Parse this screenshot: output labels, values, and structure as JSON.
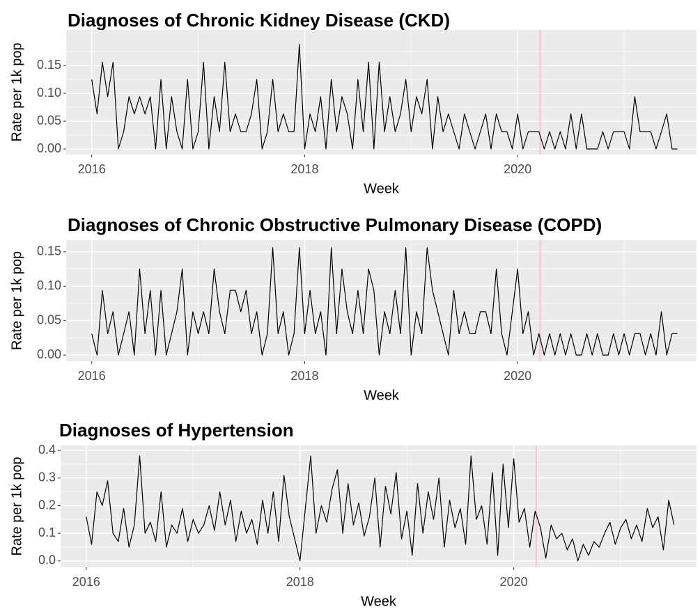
{
  "chart_data": [
    {
      "type": "line",
      "title": "Diagnoses of Chronic Kidney Disease (CKD)",
      "xlabel": "Week",
      "ylabel": "Rate per 1k pop",
      "x": [
        2016,
        2016.05,
        2016.1,
        2016.15,
        2016.2,
        2016.25,
        2016.3,
        2016.35,
        2016.4,
        2016.45,
        2016.5,
        2016.55,
        2016.6,
        2016.65,
        2016.7,
        2016.75,
        2016.8,
        2016.85,
        2016.9,
        2016.95,
        2017,
        2017.05,
        2017.1,
        2017.15,
        2017.2,
        2017.25,
        2017.3,
        2017.35,
        2017.4,
        2017.45,
        2017.5,
        2017.55,
        2017.6,
        2017.65,
        2017.7,
        2017.75,
        2017.8,
        2017.85,
        2017.9,
        2017.95,
        2018,
        2018.05,
        2018.1,
        2018.15,
        2018.2,
        2018.25,
        2018.3,
        2018.35,
        2018.4,
        2018.45,
        2018.5,
        2018.55,
        2018.6,
        2018.65,
        2018.7,
        2018.75,
        2018.8,
        2018.85,
        2018.9,
        2018.95,
        2019,
        2019.05,
        2019.1,
        2019.15,
        2019.2,
        2019.25,
        2019.3,
        2019.35,
        2019.4,
        2019.45,
        2019.5,
        2019.55,
        2019.6,
        2019.65,
        2019.7,
        2019.75,
        2019.8,
        2019.85,
        2019.9,
        2019.95,
        2020,
        2020.05,
        2020.1,
        2020.15,
        2020.2,
        2020.25,
        2020.3,
        2020.35,
        2020.4,
        2020.45,
        2020.5,
        2020.55,
        2020.6,
        2020.65,
        2020.7,
        2020.75,
        2020.8,
        2020.85,
        2020.9,
        2020.95,
        2021,
        2021.05,
        2021.1,
        2021.15,
        2021.2,
        2021.25,
        2021.3,
        2021.35,
        2021.4,
        2021.45,
        2021.5
      ],
      "series": [
        {
          "color": "#000000",
          "values": [
            0.125,
            0.063,
            0.156,
            0.094,
            0.156,
            0,
            0.031,
            0.094,
            0.063,
            0.094,
            0.063,
            0.094,
            0,
            0.125,
            0,
            0.094,
            0.031,
            0,
            0.125,
            0,
            0.031,
            0.156,
            0,
            0.094,
            0.031,
            0.156,
            0.031,
            0.063,
            0.031,
            0.031,
            0.063,
            0.125,
            0,
            0.031,
            0.125,
            0.031,
            0.063,
            0.031,
            0.031,
            0.188,
            0,
            0.063,
            0.031,
            0.094,
            0,
            0.125,
            0.031,
            0.094,
            0.063,
            0,
            0.125,
            0.031,
            0.156,
            0,
            0.156,
            0.031,
            0.094,
            0.031,
            0.063,
            0.125,
            0.031,
            0.094,
            0.063,
            0.125,
            0,
            0.094,
            0.031,
            0.063,
            0.031,
            0,
            0.063,
            0.031,
            0,
            0.031,
            0.063,
            0,
            0.063,
            0.031,
            0.031,
            0,
            0.063,
            0,
            0.031,
            0.031,
            0.031,
            0,
            0.031,
            0,
            0.031,
            0,
            0.063,
            0,
            0.063,
            0,
            0,
            0,
            0.031,
            0,
            0.031,
            0.031,
            0.031,
            0,
            0.094,
            0.031,
            0.031,
            0.031,
            0,
            0.031,
            0.063,
            0,
            0
          ]
        }
      ],
      "xlim": [
        2015.76,
        2021.68
      ],
      "xticks": [
        2016,
        2018,
        2020
      ],
      "ylim": [
        -0.01,
        0.214
      ],
      "yticks": [
        {
          "value": 0,
          "label": "0.00"
        },
        0.05,
        {
          "value": 0.1,
          "label": "0.10"
        },
        0.15
      ],
      "reference_line": {
        "x": 2020.21,
        "color": "#ffc0cb"
      },
      "grid": true
    },
    {
      "type": "line",
      "title": "Diagnoses of Chronic Obstructive Pulmonary Disease (COPD)",
      "xlabel": "Week",
      "ylabel": "Rate per 1k pop",
      "x": [
        2016,
        2016.05,
        2016.1,
        2016.15,
        2016.2,
        2016.25,
        2016.3,
        2016.35,
        2016.4,
        2016.45,
        2016.5,
        2016.55,
        2016.6,
        2016.65,
        2016.7,
        2016.75,
        2016.8,
        2016.85,
        2016.9,
        2016.95,
        2017,
        2017.05,
        2017.1,
        2017.15,
        2017.2,
        2017.25,
        2017.3,
        2017.35,
        2017.4,
        2017.45,
        2017.5,
        2017.55,
        2017.6,
        2017.65,
        2017.7,
        2017.75,
        2017.8,
        2017.85,
        2017.9,
        2017.95,
        2018,
        2018.05,
        2018.1,
        2018.15,
        2018.2,
        2018.25,
        2018.3,
        2018.35,
        2018.4,
        2018.45,
        2018.5,
        2018.55,
        2018.6,
        2018.65,
        2018.7,
        2018.75,
        2018.8,
        2018.85,
        2018.9,
        2018.95,
        2019,
        2019.05,
        2019.1,
        2019.15,
        2019.2,
        2019.25,
        2019.3,
        2019.35,
        2019.4,
        2019.45,
        2019.5,
        2019.55,
        2019.6,
        2019.65,
        2019.7,
        2019.75,
        2019.8,
        2019.85,
        2019.9,
        2019.95,
        2020,
        2020.05,
        2020.1,
        2020.15,
        2020.2,
        2020.25,
        2020.3,
        2020.35,
        2020.4,
        2020.45,
        2020.5,
        2020.55,
        2020.6,
        2020.65,
        2020.7,
        2020.75,
        2020.8,
        2020.85,
        2020.9,
        2020.95,
        2021,
        2021.05,
        2021.1,
        2021.15,
        2021.2,
        2021.25,
        2021.3,
        2021.35,
        2021.4,
        2021.45,
        2021.5
      ],
      "series": [
        {
          "color": "#000000",
          "values": [
            0.031,
            0,
            0.094,
            0.031,
            0.063,
            0,
            0.031,
            0.063,
            0,
            0.125,
            0.031,
            0.094,
            0,
            0.094,
            0,
            0.031,
            0.063,
            0.125,
            0,
            0.063,
            0.031,
            0.063,
            0.031,
            0.125,
            0.063,
            0.031,
            0.094,
            0.094,
            0.063,
            0.094,
            0.031,
            0.063,
            0,
            0.031,
            0.156,
            0.031,
            0.063,
            0,
            0.031,
            0.156,
            0.031,
            0.094,
            0.031,
            0.063,
            0,
            0.156,
            0.031,
            0.125,
            0.063,
            0.031,
            0.094,
            0.031,
            0.125,
            0.094,
            0,
            0.063,
            0.031,
            0.094,
            0.031,
            0.156,
            0,
            0.063,
            0.031,
            0.156,
            0.094,
            0.063,
            0.031,
            0,
            0.094,
            0.031,
            0.063,
            0.031,
            0.031,
            0.063,
            0.063,
            0.031,
            0.125,
            0.031,
            0,
            0.063,
            0.125,
            0.031,
            0.063,
            0,
            0.031,
            0,
            0.031,
            0,
            0.031,
            0,
            0.031,
            0,
            0,
            0.031,
            0,
            0.031,
            0,
            0,
            0.031,
            0,
            0.031,
            0,
            0.031,
            0.031,
            0,
            0.031,
            0,
            0.063,
            0,
            0.031,
            0.031
          ]
        }
      ],
      "xlim": [
        2015.76,
        2021.68
      ],
      "xticks": [
        2016,
        2018,
        2020
      ],
      "ylim": [
        -0.009,
        0.167
      ],
      "yticks": [
        {
          "value": 0,
          "label": "0.00"
        },
        0.05,
        {
          "value": 0.1,
          "label": "0.10"
        },
        0.15
      ],
      "reference_line": {
        "x": 2020.21,
        "color": "#ffc0cb"
      },
      "grid": true
    },
    {
      "type": "line",
      "title": "Diagnoses of Hypertension",
      "xlabel": "Week",
      "ylabel": "Rate per 1k pop",
      "x": [
        2016,
        2016.05,
        2016.1,
        2016.15,
        2016.2,
        2016.25,
        2016.3,
        2016.35,
        2016.4,
        2016.45,
        2016.5,
        2016.55,
        2016.6,
        2016.65,
        2016.7,
        2016.75,
        2016.8,
        2016.85,
        2016.9,
        2016.95,
        2017,
        2017.05,
        2017.1,
        2017.15,
        2017.2,
        2017.25,
        2017.3,
        2017.35,
        2017.4,
        2017.45,
        2017.5,
        2017.55,
        2017.6,
        2017.65,
        2017.7,
        2017.75,
        2017.8,
        2017.85,
        2017.9,
        2017.95,
        2018,
        2018.05,
        2018.1,
        2018.15,
        2018.2,
        2018.25,
        2018.3,
        2018.35,
        2018.4,
        2018.45,
        2018.5,
        2018.55,
        2018.6,
        2018.65,
        2018.7,
        2018.75,
        2018.8,
        2018.85,
        2018.9,
        2018.95,
        2019,
        2019.05,
        2019.1,
        2019.15,
        2019.2,
        2019.25,
        2019.3,
        2019.35,
        2019.4,
        2019.45,
        2019.5,
        2019.55,
        2019.6,
        2019.65,
        2019.7,
        2019.75,
        2019.8,
        2019.85,
        2019.9,
        2019.95,
        2020,
        2020.05,
        2020.1,
        2020.15,
        2020.2,
        2020.25,
        2020.3,
        2020.35,
        2020.4,
        2020.45,
        2020.5,
        2020.55,
        2020.6,
        2020.65,
        2020.7,
        2020.75,
        2020.8,
        2020.85,
        2020.9,
        2020.95,
        2021,
        2021.05,
        2021.1,
        2021.15,
        2021.2,
        2021.25,
        2021.3,
        2021.35,
        2021.4,
        2021.45,
        2021.5
      ],
      "series": [
        {
          "color": "#000000",
          "values": [
            0.16,
            0.06,
            0.25,
            0.2,
            0.29,
            0.1,
            0.07,
            0.19,
            0.05,
            0.13,
            0.38,
            0.1,
            0.14,
            0.07,
            0.25,
            0.05,
            0.13,
            0.1,
            0.19,
            0.07,
            0.15,
            0.1,
            0.13,
            0.2,
            0.11,
            0.25,
            0.13,
            0.22,
            0.07,
            0.18,
            0.1,
            0.15,
            0.06,
            0.22,
            0.1,
            0.25,
            0.07,
            0.31,
            0.16,
            0.08,
            0,
            0.19,
            0.38,
            0.1,
            0.2,
            0.14,
            0.26,
            0.33,
            0.1,
            0.28,
            0.13,
            0.21,
            0.09,
            0.16,
            0.3,
            0.05,
            0.27,
            0.17,
            0.32,
            0.08,
            0.18,
            0.02,
            0.28,
            0.1,
            0.25,
            0.15,
            0.3,
            0.05,
            0.22,
            0.12,
            0.19,
            0.06,
            0.38,
            0.15,
            0.2,
            0.06,
            0.32,
            0.02,
            0.35,
            0.12,
            0.37,
            0.14,
            0.19,
            0.05,
            0.18,
            0.12,
            0.01,
            0.13,
            0.08,
            0.1,
            0.04,
            0.08,
            0,
            0.06,
            0.02,
            0.07,
            0.05,
            0.1,
            0.14,
            0.06,
            0.12,
            0.15,
            0.08,
            0.13,
            0.07,
            0.19,
            0.12,
            0.16,
            0.04,
            0.22,
            0.13
          ]
        }
      ],
      "xlim": [
        2015.76,
        2021.71
      ],
      "xticks": [
        2016,
        2018,
        2020
      ],
      "ylim": [
        -0.023,
        0.418
      ],
      "yticks": [
        {
          "value": 0,
          "label": "0.0"
        },
        0.1,
        0.2,
        0.3,
        0.4
      ],
      "reference_line": {
        "x": 2020.21,
        "color": "#ffc0cb"
      },
      "grid": true
    }
  ]
}
